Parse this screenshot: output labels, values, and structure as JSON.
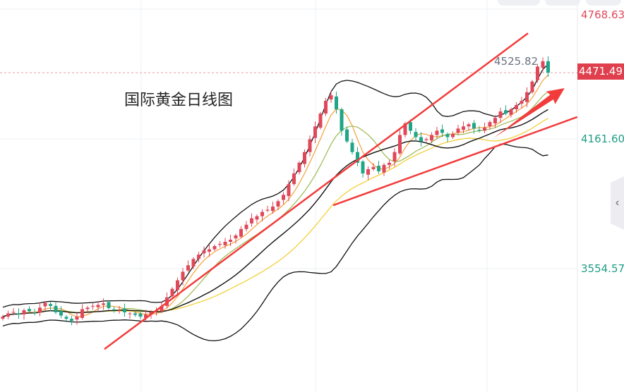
{
  "chart_data": {
    "type": "candlestick",
    "title": "国际黄金日线图",
    "y_ticks": [
      "4768.63",
      "4161.60",
      "3554.57"
    ],
    "y_tick_values": [
      4768.63,
      4161.6,
      3554.57
    ],
    "ylim": [
      2970,
      4808
    ],
    "last_price": 4471.49,
    "last_price_label": "4471.49",
    "high_label": "4525.82",
    "close": [
      3330,
      3345,
      3352,
      3340,
      3360,
      3355,
      3348,
      3372,
      3395,
      3380,
      3350,
      3335,
      3320,
      3310,
      3330,
      3365,
      3372,
      3380,
      3385,
      3392,
      3370,
      3360,
      3362,
      3350,
      3345,
      3338,
      3330,
      3340,
      3352,
      3360,
      3380,
      3420,
      3460,
      3500,
      3540,
      3570,
      3600,
      3620,
      3640,
      3645,
      3660,
      3670,
      3680,
      3690,
      3710,
      3740,
      3760,
      3790,
      3800,
      3820,
      3830,
      3845,
      3870,
      3900,
      3950,
      4000,
      4050,
      4100,
      4160,
      4220,
      4280,
      4340,
      4366,
      4300,
      4200,
      4150,
      4100,
      4050,
      4000,
      4020,
      4030,
      4010,
      4040,
      4050,
      4100,
      4180,
      4234,
      4200,
      4170,
      4150,
      4160,
      4180,
      4200,
      4190,
      4170,
      4185,
      4210,
      4220,
      4230,
      4210,
      4200,
      4215,
      4240,
      4260,
      4290,
      4280,
      4300,
      4320,
      4340,
      4380,
      4430,
      4500,
      4525,
      4471.49
    ],
    "indicators": [
      {
        "name": "MA5",
        "period": 5,
        "color": "#f5a03a"
      },
      {
        "name": "MA10",
        "period": 10,
        "color": "#9bb84f"
      },
      {
        "name": "MA30",
        "period": 30,
        "color": "#f2cc2a"
      },
      {
        "name": "BOLL",
        "period": 20,
        "k": 2,
        "color": "#111111"
      }
    ],
    "trendlines": [
      {
        "from": [
          19.2,
          3178
        ],
        "to": [
          99.2,
          4656
        ]
      },
      {
        "from": [
          62.4,
          3851
        ],
        "to": [
          108.5,
          4264
        ]
      }
    ],
    "arrow": {
      "from": [
        92.8,
        4168
      ],
      "to": [
        106.1,
        4399
      ]
    }
  },
  "colors": {
    "up": "#e0485a",
    "down": "#1fa587",
    "trend": "#f23c3c",
    "axis_up": "#e0485a",
    "axis_down": "#1f9e86"
  }
}
